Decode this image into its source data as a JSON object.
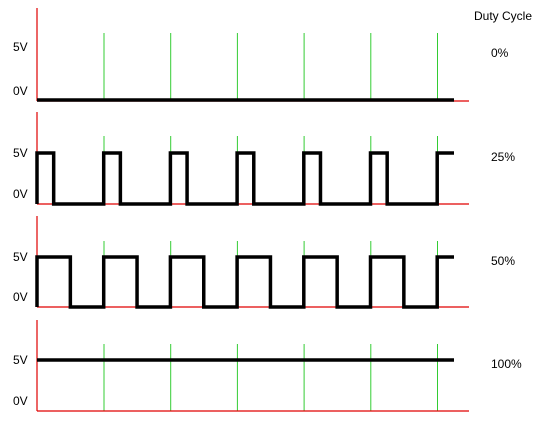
{
  "header": {
    "duty_cycle_title": "Duty Cycle"
  },
  "voltage_labels": {
    "high": "5V",
    "low": "0V"
  },
  "panels": [
    {
      "duty_label": "0%",
      "duty_fraction": 0.0
    },
    {
      "duty_label": "25%",
      "duty_fraction": 0.25
    },
    {
      "duty_label": "50%",
      "duty_fraction": 0.5
    },
    {
      "duty_label": "100%",
      "duty_fraction": 1.0
    }
  ],
  "colors": {
    "axis": "#e00000",
    "grid": "#33cc33",
    "signal": "#000000",
    "text": "#000000"
  },
  "periods": 6
}
